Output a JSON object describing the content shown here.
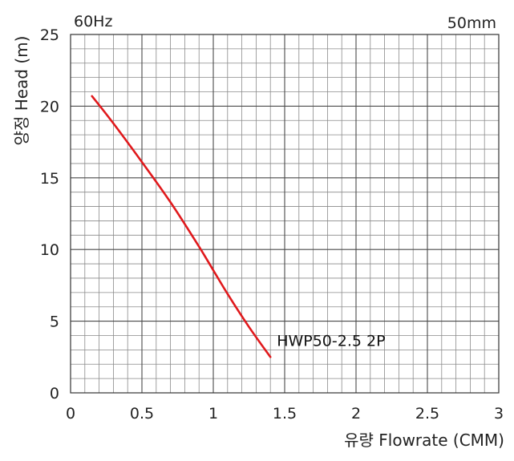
{
  "chart_data": {
    "type": "line",
    "frequency_label": "60Hz",
    "size_label": "50mm",
    "xlabel": "유량 Flowrate (CMM)",
    "ylabel": "양정 Head (m)",
    "xlim": [
      0,
      3
    ],
    "ylim": [
      0,
      25
    ],
    "x_ticks": [
      "0",
      "0.5",
      "1",
      "1.5",
      "2",
      "2.5",
      "3"
    ],
    "y_ticks": [
      "0",
      "5",
      "10",
      "15",
      "20",
      "25"
    ],
    "grid": true,
    "series": [
      {
        "name": "HWP50-2.5 2P",
        "color": "#e0191c",
        "x": [
          0.15,
          0.3,
          0.5,
          0.7,
          0.9,
          1.1,
          1.25,
          1.4
        ],
        "y": [
          20.7,
          18.8,
          16.1,
          13.3,
          10.2,
          6.9,
          4.6,
          2.5
        ]
      }
    ]
  }
}
